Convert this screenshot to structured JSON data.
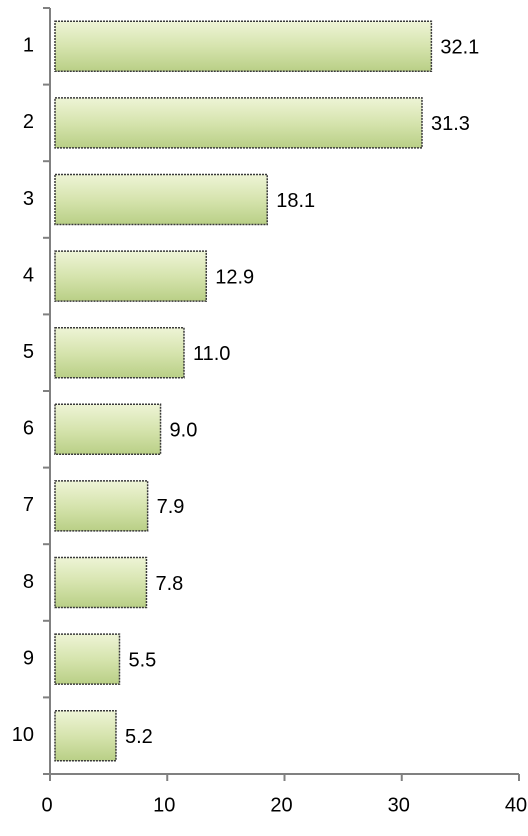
{
  "chart_data": {
    "type": "bar",
    "orientation": "horizontal",
    "categories": [
      "1",
      "2",
      "3",
      "4",
      "5",
      "6",
      "7",
      "8",
      "9",
      "10"
    ],
    "values": [
      32.1,
      31.3,
      18.1,
      12.9,
      11.0,
      9.0,
      7.9,
      7.8,
      5.5,
      5.2
    ],
    "value_labels": [
      "32.1",
      "31.3",
      "18.1",
      "12.9",
      "11.0",
      "9.0",
      "7.9",
      "7.8",
      "5.5",
      "5.2"
    ],
    "color": "#c4d79b",
    "xlim": [
      0,
      40
    ],
    "xticks": [
      0,
      10,
      20,
      30,
      40
    ]
  }
}
